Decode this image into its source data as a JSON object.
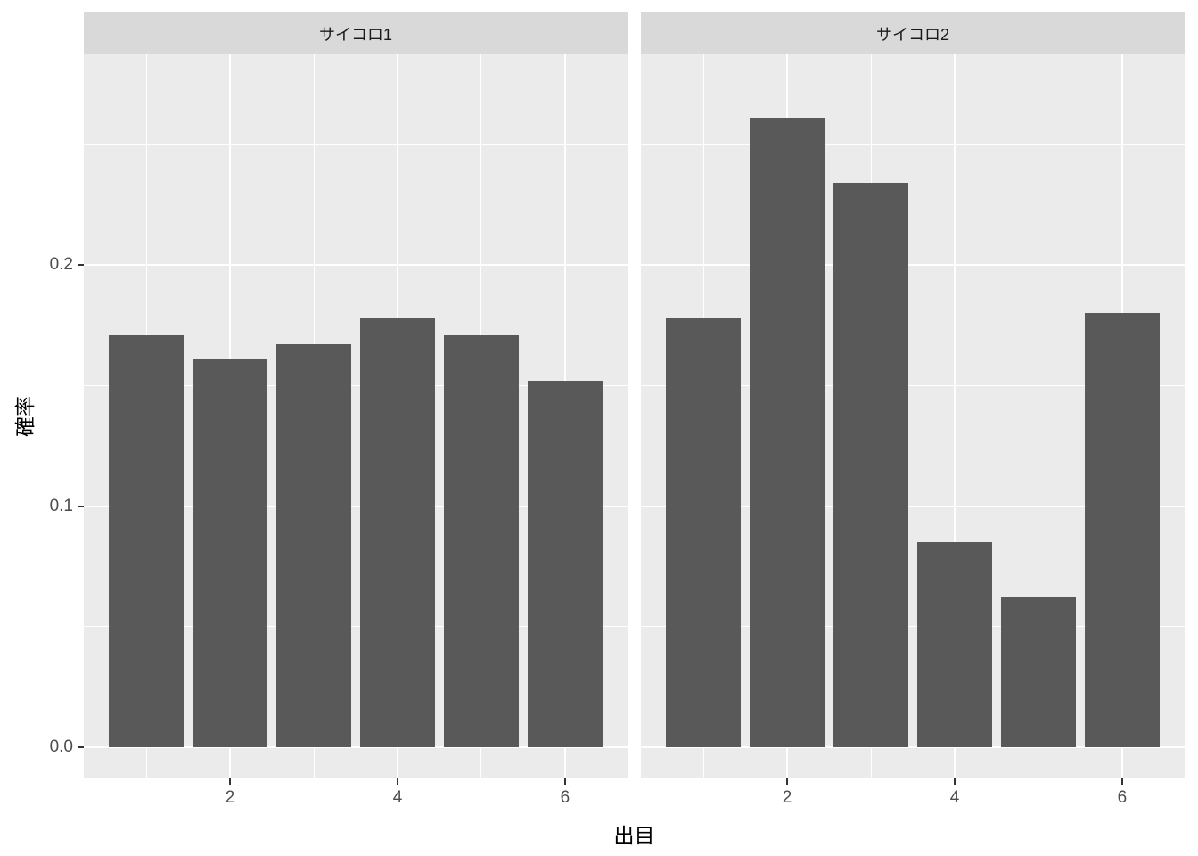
{
  "chart_data": {
    "type": "bar",
    "title": "",
    "xlabel": "出目",
    "ylabel": "確率",
    "facets": [
      {
        "label": "サイコロ1",
        "categories": [
          1,
          2,
          3,
          4,
          5,
          6
        ],
        "values": [
          0.171,
          0.161,
          0.167,
          0.178,
          0.171,
          0.152
        ]
      },
      {
        "label": "サイコロ2",
        "categories": [
          1,
          2,
          3,
          4,
          5,
          6
        ],
        "values": [
          0.178,
          0.261,
          0.234,
          0.085,
          0.062,
          0.18
        ]
      }
    ],
    "bar_width": 0.9,
    "x_domain": [
      0.255,
      6.745
    ],
    "y_domain": [
      -0.013,
      0.2874
    ],
    "x_major_breaks": [
      2,
      4,
      6
    ],
    "x_minor_breaks": [
      1,
      3,
      5
    ],
    "y_major_breaks": [
      0.0,
      0.1,
      0.2
    ],
    "y_minor_breaks": [
      0.05,
      0.15,
      0.25
    ],
    "x_tick_labels": [
      "2",
      "4",
      "6"
    ],
    "y_tick_labels": [
      "0.0",
      "0.1",
      "0.2"
    ],
    "grid": true,
    "legend": "none",
    "colors": {
      "bar_fill": "#595959",
      "panel_background": "#EBEBEB",
      "strip_background": "#D9D9D9",
      "gridline": "#FFFFFF",
      "axis_text": "#4D4D4D",
      "strip_text": "#1A1A1A",
      "axis_title": "#000000",
      "tick_mark": "#333333",
      "plot_background": "#FFFFFF"
    }
  }
}
